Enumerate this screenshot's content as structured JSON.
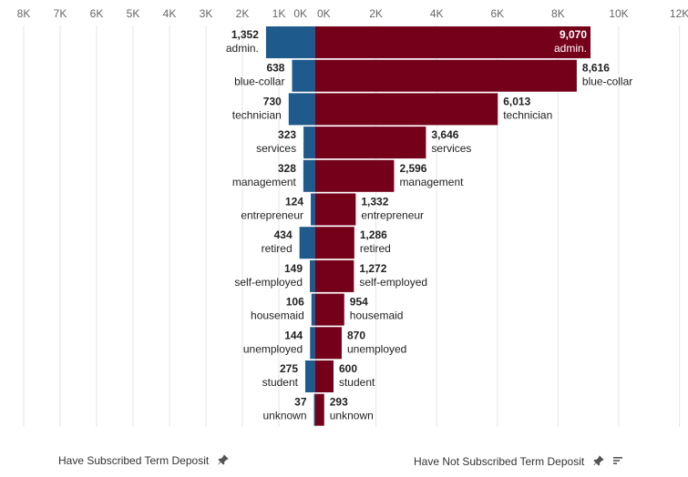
{
  "chart_data": {
    "type": "bar",
    "orientation": "horizontal-diverging",
    "categories": [
      "admin.",
      "blue-collar",
      "technician",
      "services",
      "management",
      "entrepreneur",
      "retired",
      "self-employed",
      "housemaid",
      "unemployed",
      "student",
      "unknown"
    ],
    "series": [
      {
        "name": "Have Subscribed Term Deposit",
        "color": "#1f5a8c",
        "values": [
          1352,
          638,
          730,
          323,
          328,
          124,
          434,
          149,
          106,
          144,
          275,
          37
        ],
        "value_labels": [
          "1,352",
          "638",
          "730",
          "323",
          "328",
          "124",
          "434",
          "149",
          "106",
          "144",
          "275",
          "37"
        ],
        "axis_ticks": [
          "8K",
          "7K",
          "6K",
          "5K",
          "4K",
          "3K",
          "2K",
          "1K",
          "0K"
        ],
        "xlim": [
          0,
          8000
        ]
      },
      {
        "name": "Have Not Subscribed Term Deposit",
        "color": "#75001a",
        "values": [
          9070,
          8616,
          6013,
          3646,
          2596,
          1332,
          1286,
          1272,
          954,
          870,
          600,
          293
        ],
        "value_labels": [
          "9,070",
          "8,616",
          "6,013",
          "3,646",
          "2,596",
          "1,332",
          "1,286",
          "1,272",
          "954",
          "870",
          "600",
          "293"
        ],
        "axis_ticks": [
          "0K",
          "2K",
          "4K",
          "6K",
          "8K",
          "10K",
          "12K"
        ],
        "xlim": [
          0,
          12000
        ]
      }
    ],
    "grid": true
  },
  "footer": {
    "left_label": "Have Subscribed Term Deposit",
    "right_label": "Have Not Subscribed Term Deposit",
    "left_icon": "pin-icon",
    "right_icons": [
      "pin-icon",
      "sort-icon"
    ]
  }
}
